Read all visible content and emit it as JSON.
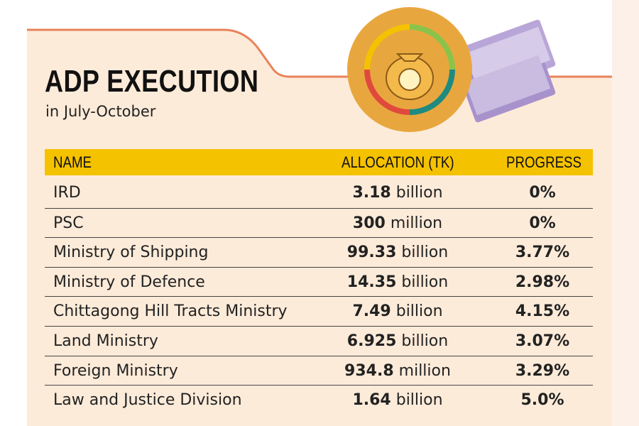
{
  "header": {
    "title": "ADP EXECUTION",
    "subtitle": "in July-October"
  },
  "table": {
    "columns": [
      "NAME",
      "ALLOCATION (TK)",
      "PROGRESS"
    ],
    "rows": [
      [
        "IRD",
        "3.18",
        "billion",
        "0%"
      ],
      [
        "PSC",
        "300",
        "million",
        "0%"
      ],
      [
        "Ministry of Shipping",
        "99.33",
        "billion",
        "3.77%"
      ],
      [
        "Ministry of Defence",
        "14.35",
        "billion",
        "2.98%"
      ],
      [
        "Chittagong Hill Tracts Ministry",
        "7.49",
        "billion",
        "4.15%"
      ],
      [
        "Land Ministry",
        "6.925",
        "billion",
        "3.07%"
      ],
      [
        "Foreign Ministry",
        "934.8",
        "million",
        "3.29%"
      ],
      [
        "Law and Justice Division",
        "1.64",
        "billion",
        "5.0%"
      ]
    ]
  }
}
